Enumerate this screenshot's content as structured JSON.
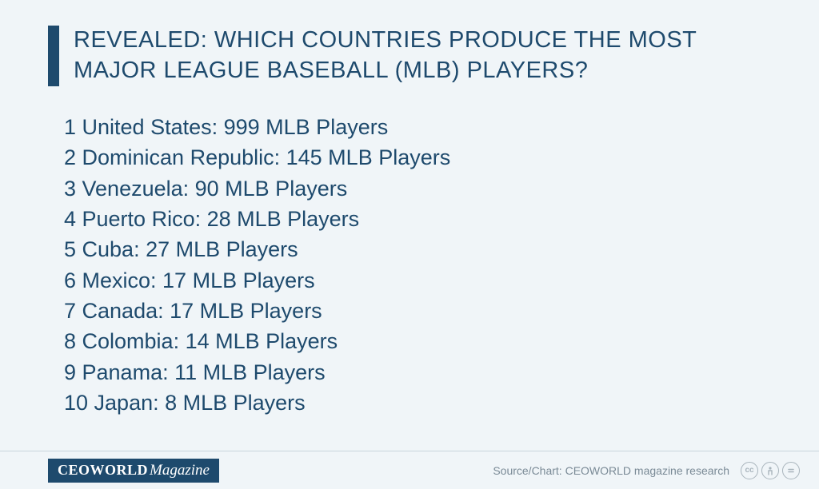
{
  "title": "REVEALED: WHICH COUNTRIES PRODUCE THE MOST MAJOR LEAGUE BASEBALL (MLB) PLAYERS?",
  "title_color": "#1e4a6d",
  "title_fontsize": 29,
  "background_color": "#f0f5f8",
  "accent_bar_color": "#1e4a6d",
  "list": {
    "text_color": "#1e4a6d",
    "fontsize": 27,
    "suffix_label": "MLB Players",
    "items": [
      {
        "rank": 1,
        "country": "United States",
        "players": 999
      },
      {
        "rank": 2,
        "country": "Dominican Republic",
        "players": 145
      },
      {
        "rank": 3,
        "country": "Venezuela",
        "players": 90
      },
      {
        "rank": 4,
        "country": "Puerto Rico",
        "players": 28
      },
      {
        "rank": 5,
        "country": "Cuba",
        "players": 27
      },
      {
        "rank": 6,
        "country": "Mexico",
        "players": 17
      },
      {
        "rank": 7,
        "country": "Canada",
        "players": 17
      },
      {
        "rank": 8,
        "country": "Colombia",
        "players": 14
      },
      {
        "rank": 9,
        "country": "Panama",
        "players": 11
      },
      {
        "rank": 10,
        "country": "Japan",
        "players": 8
      }
    ]
  },
  "footer": {
    "logo_bold": "CEOWORLD",
    "logo_italic": "Magazine",
    "logo_bg": "#1e4a6d",
    "logo_fg": "#ffffff",
    "source_text": "Source/Chart: CEOWORLD magazine research",
    "source_color": "#7a8a96",
    "border_color": "#c8d4dc",
    "cc_icon_color": "#a8b4bc"
  }
}
